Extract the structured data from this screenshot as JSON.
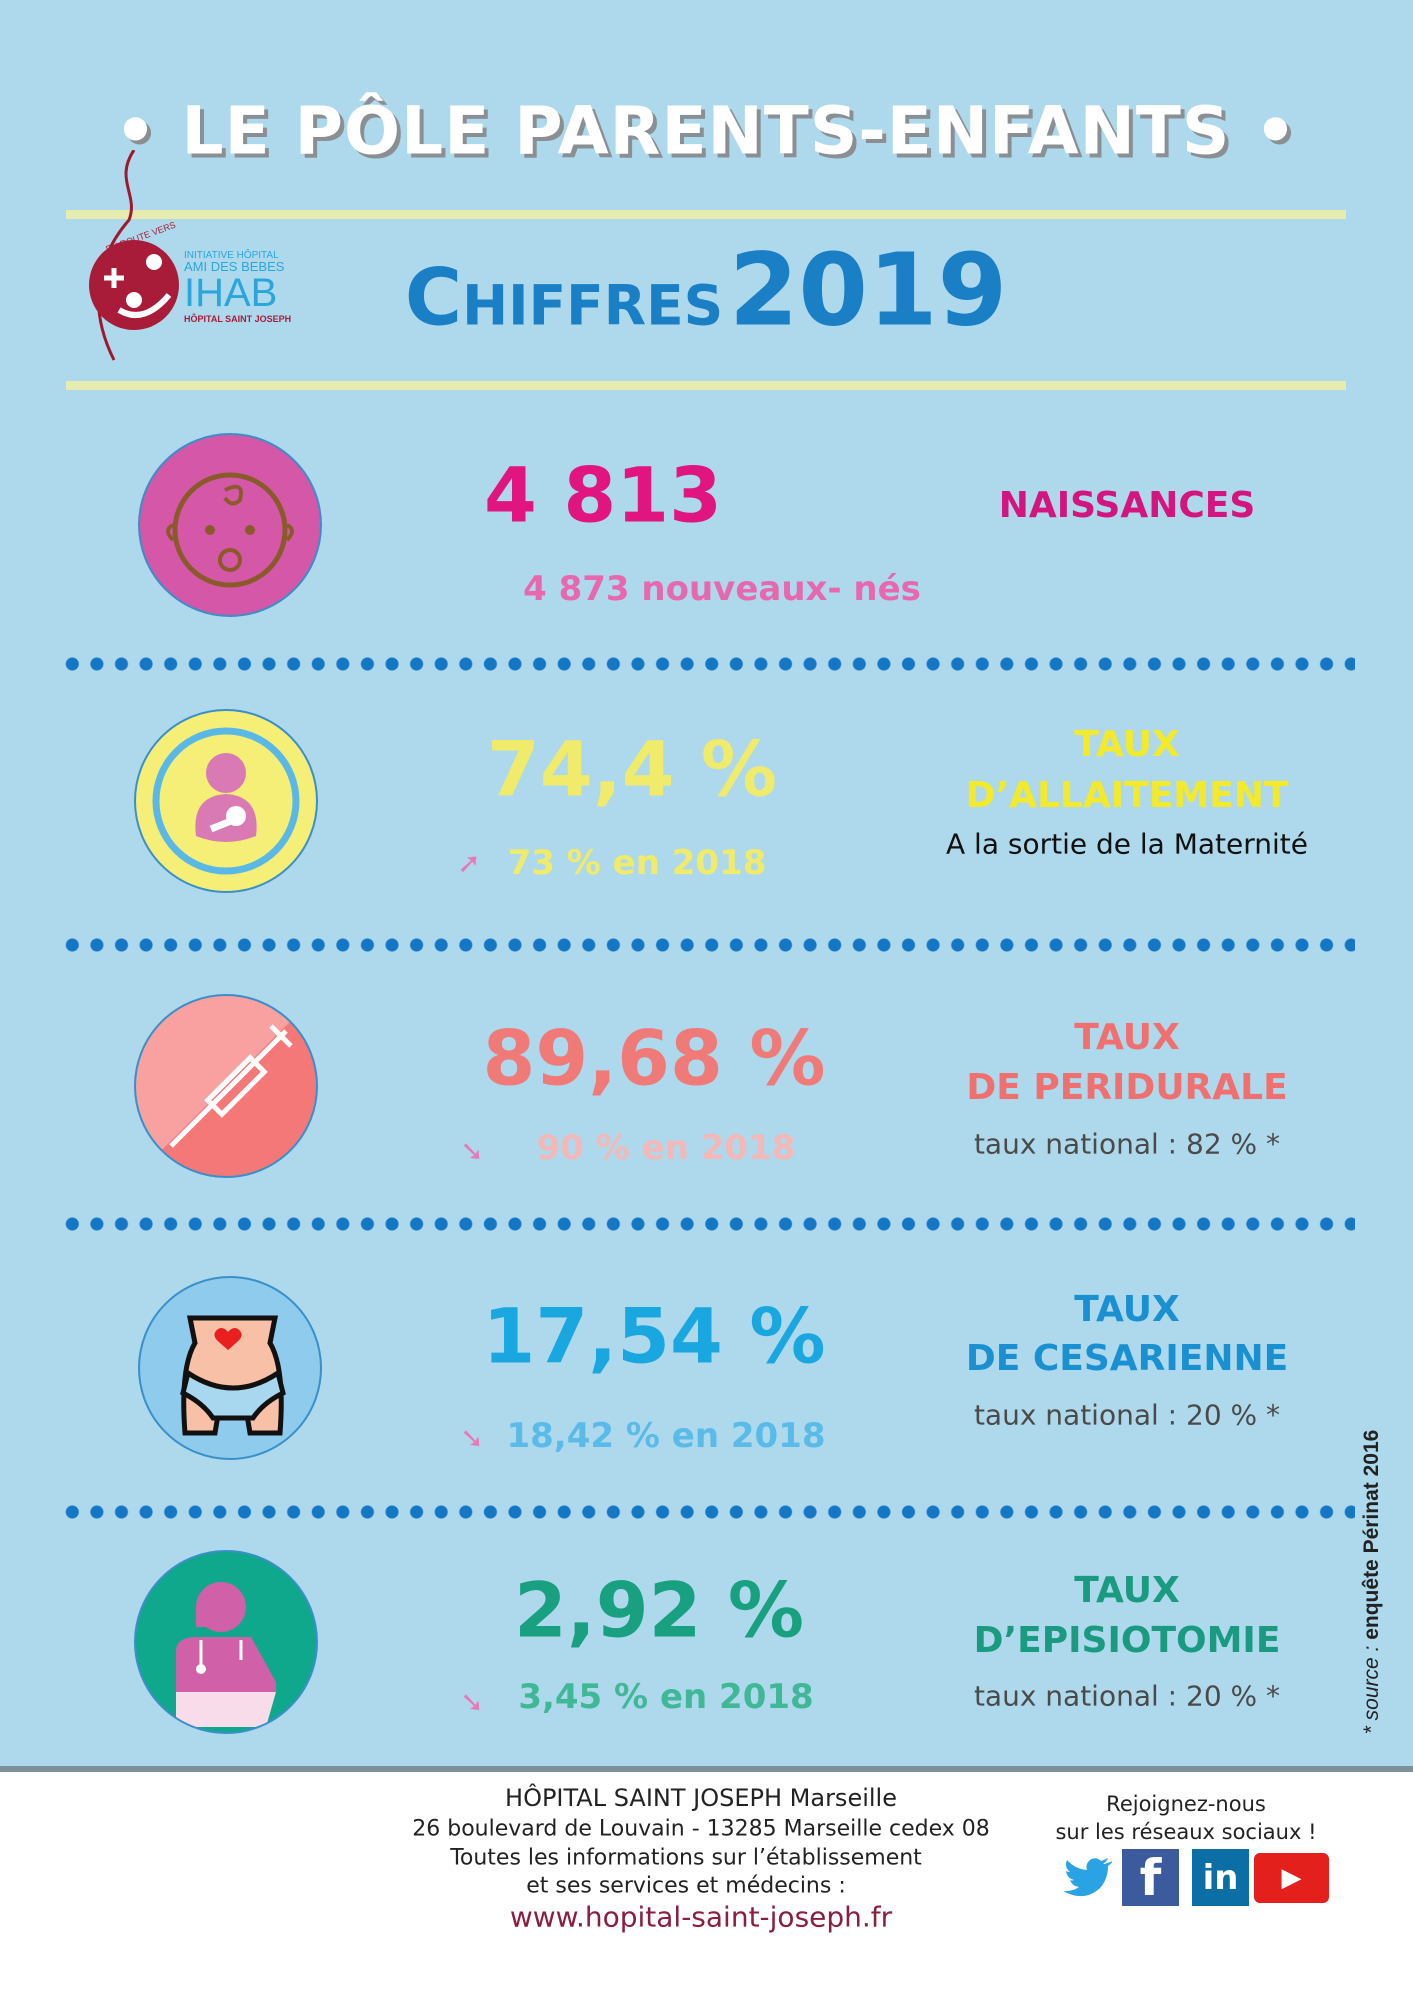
{
  "header": {
    "title": "• LE PÔLE PARENTS-ENFANTS •",
    "heading_word": "Chiffres",
    "heading_year": "2019",
    "logo_text": [
      "EN ROUTE VERS",
      "INITIATIVE HÔPITAL",
      "AMI DES BEBES",
      "IHAB",
      "HÔPITAL SAINT JOSEPH"
    ]
  },
  "stats": [
    {
      "value": "4 813",
      "label_lines": [
        "NAISSANCES"
      ],
      "sub": "4 873 nouveaux- nés",
      "note": "",
      "icon": "baby-face-icon",
      "trend": "",
      "color": "#e0157f"
    },
    {
      "value": "74,4 %",
      "label_lines": [
        "TAUX",
        "D’ALLAITEMENT"
      ],
      "sub": "73 % en 2018",
      "note": "A la sortie de la Maternité",
      "icon": "breastfeeding-icon",
      "trend": "up",
      "color": "#f0eb6a"
    },
    {
      "value": "89,68 %",
      "label_lines": [
        "TAUX",
        "DE PERIDURALE"
      ],
      "sub": "90 % en 2018",
      "note": "taux national : 82 %  *",
      "icon": "syringe-icon",
      "trend": "down",
      "color": "#f07a78"
    },
    {
      "value": "17,54 %",
      "label_lines": [
        "TAUX",
        "DE CESARIENNE"
      ],
      "sub": "18,42 % en 2018",
      "note": "taux national : 20 %  *",
      "icon": "belly-icon",
      "trend": "down",
      "color": "#1aa7e0"
    },
    {
      "value": "2,92 %",
      "label_lines": [
        "TAUX",
        "D’EPISIOTOMIE"
      ],
      "sub": "3,45 % en 2018",
      "note": "taux national : 20 %  *",
      "icon": "doctor-icon",
      "trend": "down",
      "color": "#18a080"
    }
  ],
  "source": {
    "prefix": "* source : ",
    "text": "enquête Périnat 2016"
  },
  "footer": {
    "name": "HÔPITAL SAINT JOSEPH Marseille",
    "address": "26 boulevard de Louvain - 13285 Marseille cedex 08",
    "info1": "Toutes les informations sur l’établissement",
    "info2": "et ses services et médecins :",
    "website": "www.hopital-saint-joseph.fr",
    "social1": "Rejoignez-nous",
    "social2": "sur les réseaux sociaux !",
    "social_icons": [
      "twitter-icon",
      "facebook-icon",
      "linkedin-icon",
      "youtube-icon"
    ]
  }
}
